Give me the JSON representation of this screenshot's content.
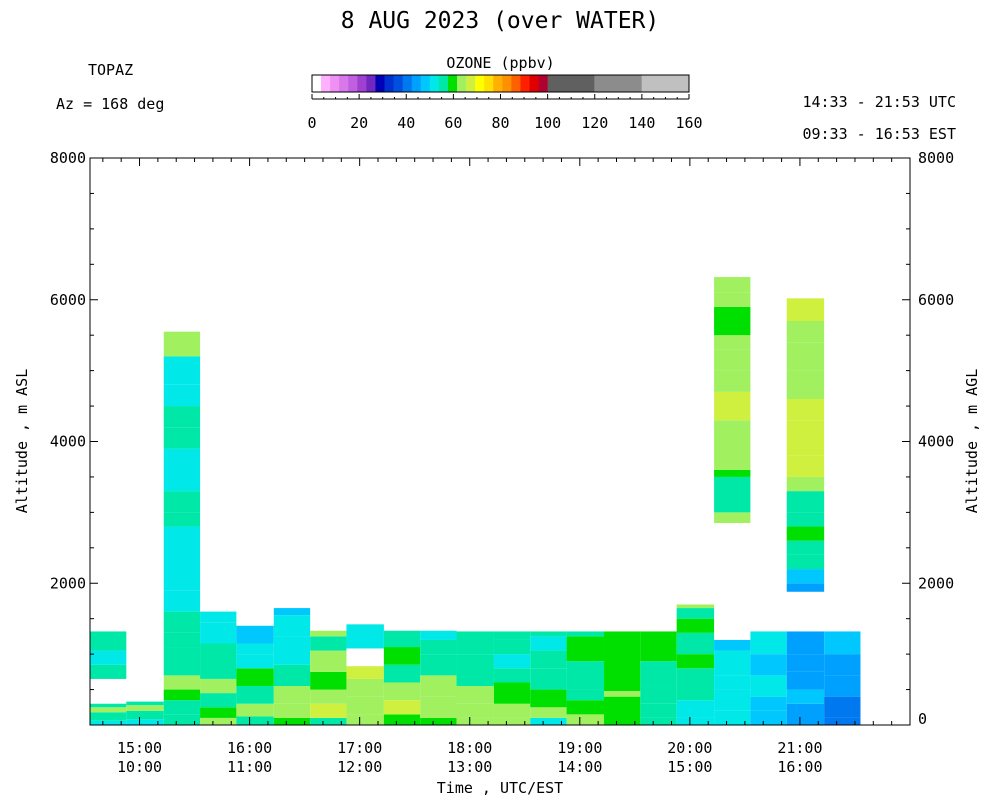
{
  "title": "8 AUG 2023 (over WATER)",
  "instrument": "TOPAZ",
  "azimuth": "Az = 168 deg",
  "utc_range": "14:33 - 21:53 UTC",
  "est_range": "09:33 - 16:53 EST",
  "colorbar": {
    "title": "OZONE (ppbv)",
    "ticks": [
      "0",
      "20",
      "40",
      "60",
      "80",
      "100",
      "120",
      "140",
      "160"
    ],
    "colors": [
      "#ffffff",
      "#ffb0ff",
      "#f090f5",
      "#d878ea",
      "#c060e0",
      "#a040d0",
      "#7028c0",
      "#0000b4",
      "#0030d0",
      "#0050e0",
      "#0078f0",
      "#00a0ff",
      "#00c8ff",
      "#00e8e8",
      "#00e8a8",
      "#00e000",
      "#a0f060",
      "#d0f040",
      "#ffff00",
      "#ffe000",
      "#ffb000",
      "#ff9000",
      "#ff6000",
      "#ff2000",
      "#e00000",
      "#b00030",
      "#606060",
      "#8c8c8c",
      "#c0c0c0"
    ]
  },
  "chart_data": {
    "type": "heatmap",
    "xlabel": "Time , UTC/EST",
    "ylabel_left": "Altitude , m ASL",
    "ylabel_right": "Altitude , m AGL",
    "xlim_utc_hours": [
      14.55,
      22.0
    ],
    "ylim": [
      0,
      8000
    ],
    "x_ticks": [
      {
        "utc": "15:00",
        "est": "10:00"
      },
      {
        "utc": "16:00",
        "est": "11:00"
      },
      {
        "utc": "17:00",
        "est": "12:00"
      },
      {
        "utc": "18:00",
        "est": "13:00"
      },
      {
        "utc": "19:00",
        "est": "14:00"
      },
      {
        "utc": "20:00",
        "est": "15:00"
      },
      {
        "utc": "21:00",
        "est": "16:00"
      }
    ],
    "y_ticks_left": [
      "0",
      "2000",
      "4000",
      "6000",
      "8000"
    ],
    "y_ticks_right": [
      "0",
      "2000",
      "4000",
      "6000",
      "8000"
    ],
    "profiles": [
      {
        "t0": 14.55,
        "t1": 14.88,
        "layers": [
          [
            0,
            60,
            52
          ],
          [
            60,
            180,
            58
          ],
          [
            180,
            250,
            63
          ],
          [
            250,
            300,
            58
          ],
          [
            650,
            850,
            54
          ],
          [
            850,
            1050,
            52
          ],
          [
            1050,
            1320,
            56
          ]
        ]
      },
      {
        "t0": 14.88,
        "t1": 15.22,
        "layers": [
          [
            0,
            80,
            52
          ],
          [
            80,
            200,
            58
          ],
          [
            200,
            280,
            63
          ],
          [
            280,
            330,
            58
          ]
        ]
      },
      {
        "t0": 15.22,
        "t1": 15.55,
        "layers": [
          [
            0,
            150,
            58
          ],
          [
            150,
            350,
            56
          ],
          [
            350,
            500,
            60
          ],
          [
            500,
            700,
            62
          ],
          [
            700,
            1100,
            56
          ],
          [
            1100,
            1300,
            58
          ],
          [
            1300,
            1600,
            56
          ],
          [
            1600,
            1900,
            52
          ],
          [
            1900,
            2800,
            52
          ],
          [
            2800,
            3000,
            56
          ],
          [
            3000,
            3300,
            56
          ],
          [
            3300,
            3900,
            52
          ],
          [
            3900,
            4200,
            56
          ],
          [
            4200,
            4500,
            58
          ],
          [
            4500,
            4800,
            52
          ],
          [
            4800,
            5200,
            50
          ],
          [
            5200,
            5550,
            62
          ]
        ]
      },
      {
        "t0": 15.55,
        "t1": 15.88,
        "layers": [
          [
            0,
            100,
            63
          ],
          [
            100,
            250,
            60
          ],
          [
            250,
            450,
            58
          ],
          [
            450,
            650,
            62
          ],
          [
            650,
            1150,
            56
          ],
          [
            1150,
            1450,
            50
          ],
          [
            1450,
            1600,
            52
          ]
        ]
      },
      {
        "t0": 15.88,
        "t1": 16.22,
        "layers": [
          [
            0,
            120,
            56
          ],
          [
            120,
            300,
            63
          ],
          [
            300,
            550,
            56
          ],
          [
            550,
            800,
            60
          ],
          [
            800,
            1000,
            50
          ],
          [
            1000,
            1150,
            50
          ],
          [
            1150,
            1400,
            48
          ]
        ]
      },
      {
        "t0": 16.22,
        "t1": 16.55,
        "layers": [
          [
            0,
            100,
            60
          ],
          [
            100,
            300,
            62
          ],
          [
            300,
            550,
            62
          ],
          [
            550,
            850,
            56
          ],
          [
            850,
            1250,
            52
          ],
          [
            1250,
            1550,
            52
          ],
          [
            1550,
            1650,
            48
          ]
        ]
      },
      {
        "t0": 16.55,
        "t1": 16.88,
        "layers": [
          [
            0,
            100,
            58
          ],
          [
            100,
            300,
            66
          ],
          [
            300,
            500,
            62
          ],
          [
            500,
            750,
            60
          ],
          [
            750,
            1050,
            62
          ],
          [
            1050,
            1250,
            56
          ],
          [
            1250,
            1330,
            62
          ]
        ]
      },
      {
        "t0": 16.88,
        "t1": 17.22,
        "layers": [
          [
            0,
            150,
            62
          ],
          [
            150,
            400,
            63
          ],
          [
            400,
            650,
            64
          ],
          [
            650,
            830,
            66
          ],
          [
            1080,
            1420,
            52
          ]
        ]
      },
      {
        "t0": 17.22,
        "t1": 17.55,
        "layers": [
          [
            0,
            150,
            60
          ],
          [
            150,
            350,
            66
          ],
          [
            350,
            600,
            62
          ],
          [
            600,
            850,
            58
          ],
          [
            850,
            1100,
            60
          ],
          [
            1100,
            1330,
            56
          ]
        ]
      },
      {
        "t0": 17.55,
        "t1": 17.88,
        "layers": [
          [
            0,
            100,
            60
          ],
          [
            100,
            400,
            64
          ],
          [
            400,
            700,
            62
          ],
          [
            700,
            1000,
            56
          ],
          [
            1000,
            1200,
            56
          ],
          [
            1200,
            1330,
            50
          ]
        ]
      },
      {
        "t0": 17.88,
        "t1": 18.22,
        "layers": [
          [
            0,
            100,
            62
          ],
          [
            100,
            300,
            64
          ],
          [
            300,
            550,
            62
          ],
          [
            550,
            1000,
            56
          ],
          [
            1000,
            1320,
            56
          ]
        ]
      },
      {
        "t0": 18.22,
        "t1": 18.55,
        "layers": [
          [
            0,
            100,
            62
          ],
          [
            100,
            300,
            63
          ],
          [
            300,
            600,
            60
          ],
          [
            600,
            800,
            56
          ],
          [
            800,
            1000,
            53
          ],
          [
            1000,
            1200,
            56
          ],
          [
            1200,
            1320,
            58
          ]
        ]
      },
      {
        "t0": 18.55,
        "t1": 18.88,
        "layers": [
          [
            0,
            100,
            51
          ],
          [
            100,
            250,
            62
          ],
          [
            250,
            500,
            60
          ],
          [
            500,
            800,
            56
          ],
          [
            800,
            1050,
            56
          ],
          [
            1050,
            1250,
            52
          ],
          [
            1250,
            1320,
            56
          ]
        ]
      },
      {
        "t0": 18.88,
        "t1": 19.22,
        "layers": [
          [
            0,
            150,
            62
          ],
          [
            150,
            350,
            60
          ],
          [
            350,
            500,
            56
          ],
          [
            500,
            900,
            56
          ],
          [
            900,
            1250,
            60
          ],
          [
            1250,
            1320,
            58
          ]
        ]
      },
      {
        "t0": 19.22,
        "t1": 19.55,
        "layers": [
          [
            0,
            400,
            60
          ],
          [
            400,
            480,
            63
          ],
          [
            480,
            1320,
            60
          ]
        ]
      },
      {
        "t0": 19.55,
        "t1": 19.88,
        "layers": [
          [
            0,
            100,
            56
          ],
          [
            100,
            300,
            58
          ],
          [
            300,
            550,
            56
          ],
          [
            550,
            900,
            56
          ],
          [
            900,
            1320,
            60
          ]
        ]
      },
      {
        "t0": 19.88,
        "t1": 20.22,
        "layers": [
          [
            0,
            100,
            52
          ],
          [
            100,
            350,
            52
          ],
          [
            350,
            800,
            56
          ],
          [
            800,
            1000,
            60
          ],
          [
            1000,
            1300,
            56
          ],
          [
            1300,
            1500,
            60
          ],
          [
            1500,
            1650,
            56
          ],
          [
            1650,
            1700,
            63
          ]
        ]
      },
      {
        "t0": 20.22,
        "t1": 20.55,
        "layers": [
          [
            0,
            200,
            52
          ],
          [
            200,
            500,
            50
          ],
          [
            500,
            700,
            52
          ],
          [
            700,
            1050,
            50
          ],
          [
            1050,
            1200,
            46
          ],
          [
            2850,
            3000,
            62
          ],
          [
            3000,
            3500,
            56
          ],
          [
            3500,
            3600,
            60
          ],
          [
            3600,
            4000,
            63
          ],
          [
            4000,
            4300,
            65
          ],
          [
            4300,
            4700,
            66
          ],
          [
            4700,
            5000,
            63
          ],
          [
            5000,
            5300,
            62
          ],
          [
            5300,
            5500,
            64
          ],
          [
            5500,
            5900,
            60
          ],
          [
            5900,
            6100,
            62
          ],
          [
            6100,
            6320,
            64
          ]
        ]
      },
      {
        "t0": 20.55,
        "t1": 20.88,
        "layers": [
          [
            0,
            200,
            46
          ],
          [
            200,
            400,
            48
          ],
          [
            400,
            700,
            50
          ],
          [
            700,
            1000,
            48
          ],
          [
            1000,
            1320,
            50
          ]
        ]
      },
      {
        "t0": 20.88,
        "t1": 21.22,
        "layers": [
          [
            0,
            300,
            44
          ],
          [
            300,
            500,
            46
          ],
          [
            500,
            750,
            45
          ],
          [
            750,
            1000,
            42
          ],
          [
            1000,
            1320,
            45
          ],
          [
            1880,
            2000,
            42
          ],
          [
            2000,
            2200,
            48
          ],
          [
            2200,
            2400,
            56
          ],
          [
            2400,
            2600,
            58
          ],
          [
            2600,
            2800,
            60
          ],
          [
            2800,
            3000,
            56
          ],
          [
            3000,
            3300,
            56
          ],
          [
            3300,
            3500,
            63
          ],
          [
            3500,
            3800,
            66
          ],
          [
            3800,
            4000,
            67
          ],
          [
            4000,
            4300,
            68
          ],
          [
            4300,
            4600,
            66
          ],
          [
            4600,
            5000,
            64
          ],
          [
            5000,
            5400,
            62
          ],
          [
            5400,
            5700,
            64
          ],
          [
            5700,
            6020,
            66
          ]
        ]
      },
      {
        "t0": 21.22,
        "t1": 21.55,
        "layers": [
          [
            0,
            100,
            40
          ],
          [
            100,
            400,
            40
          ],
          [
            400,
            700,
            44
          ],
          [
            700,
            1000,
            45
          ],
          [
            1000,
            1320,
            46
          ]
        ]
      }
    ]
  }
}
